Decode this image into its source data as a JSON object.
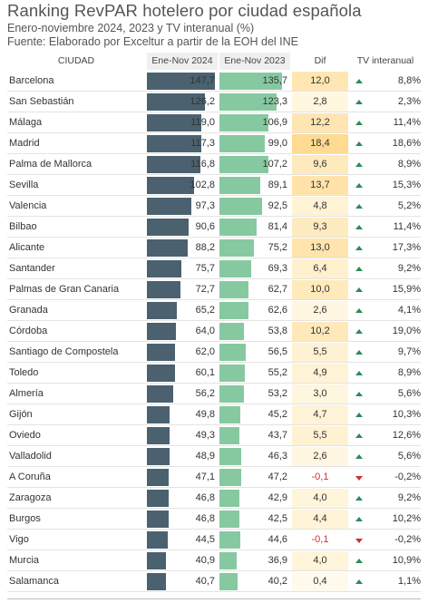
{
  "title": "Ranking RevPAR hotelero por ciudad española",
  "subtitle": "Enero-noviembre 2024, 2023 y TV interanual (%)",
  "source": "Fuente: Elaborado por Exceltur a partir de la EOH del INE",
  "headers": {
    "city": "CIUDAD",
    "v2024": "Ene-Nov 2024",
    "v2023": "Ene-Nov 2023",
    "dif": "Dif",
    "tv": "TV interanual"
  },
  "colors": {
    "bar2024": "#4b6170",
    "bar2023": "#86c9a1",
    "up": "#2e8b57",
    "down": "#d32f2f"
  },
  "chart_data": {
    "type": "table",
    "max_value": 147.7,
    "rows": [
      {
        "city": "Barcelona",
        "v2024": 147.7,
        "v2023": 135.7,
        "v2024_text": "147,7",
        "v2023_text": "135,7",
        "dif": 12.0,
        "dif_text": "12,0",
        "tv": 8.8,
        "tv_text": "8,8%"
      },
      {
        "city": "San Sebastián",
        "v2024": 126.2,
        "v2023": 123.3,
        "v2024_text": "126,2",
        "v2023_text": "123,3",
        "dif": 2.8,
        "dif_text": "2,8",
        "tv": 2.3,
        "tv_text": "2,3%"
      },
      {
        "city": "Málaga",
        "v2024": 119.0,
        "v2023": 106.9,
        "v2024_text": "119,0",
        "v2023_text": "106,9",
        "dif": 12.2,
        "dif_text": "12,2",
        "tv": 11.4,
        "tv_text": "11,4%"
      },
      {
        "city": "Madrid",
        "v2024": 117.3,
        "v2023": 99.0,
        "v2024_text": "117,3",
        "v2023_text": "99,0",
        "dif": 18.4,
        "dif_text": "18,4",
        "tv": 18.6,
        "tv_text": "18,6%"
      },
      {
        "city": "Palma de Mallorca",
        "v2024": 116.8,
        "v2023": 107.2,
        "v2024_text": "116,8",
        "v2023_text": "107,2",
        "dif": 9.6,
        "dif_text": "9,6",
        "tv": 8.9,
        "tv_text": "8,9%"
      },
      {
        "city": "Sevilla",
        "v2024": 102.8,
        "v2023": 89.1,
        "v2024_text": "102,8",
        "v2023_text": "89,1",
        "dif": 13.7,
        "dif_text": "13,7",
        "tv": 15.3,
        "tv_text": "15,3%"
      },
      {
        "city": "Valencia",
        "v2024": 97.3,
        "v2023": 92.5,
        "v2024_text": "97,3",
        "v2023_text": "92,5",
        "dif": 4.8,
        "dif_text": "4,8",
        "tv": 5.2,
        "tv_text": "5,2%"
      },
      {
        "city": "Bilbao",
        "v2024": 90.6,
        "v2023": 81.4,
        "v2024_text": "90,6",
        "v2023_text": "81,4",
        "dif": 9.3,
        "dif_text": "9,3",
        "tv": 11.4,
        "tv_text": "11,4%"
      },
      {
        "city": "Alicante",
        "v2024": 88.2,
        "v2023": 75.2,
        "v2024_text": "88,2",
        "v2023_text": "75,2",
        "dif": 13.0,
        "dif_text": "13,0",
        "tv": 17.3,
        "tv_text": "17,3%"
      },
      {
        "city": "Santander",
        "v2024": 75.7,
        "v2023": 69.3,
        "v2024_text": "75,7",
        "v2023_text": "69,3",
        "dif": 6.4,
        "dif_text": "6,4",
        "tv": 9.2,
        "tv_text": "9,2%"
      },
      {
        "city": "Palmas de Gran Canaria",
        "v2024": 72.7,
        "v2023": 62.7,
        "v2024_text": "72,7",
        "v2023_text": "62,7",
        "dif": 10.0,
        "dif_text": "10,0",
        "tv": 15.9,
        "tv_text": "15,9%"
      },
      {
        "city": "Granada",
        "v2024": 65.2,
        "v2023": 62.6,
        "v2024_text": "65,2",
        "v2023_text": "62,6",
        "dif": 2.6,
        "dif_text": "2,6",
        "tv": 4.1,
        "tv_text": "4,1%"
      },
      {
        "city": "Córdoba",
        "v2024": 64.0,
        "v2023": 53.8,
        "v2024_text": "64,0",
        "v2023_text": "53,8",
        "dif": 10.2,
        "dif_text": "10,2",
        "tv": 19.0,
        "tv_text": "19,0%"
      },
      {
        "city": "Santiago de Compostela",
        "v2024": 62.0,
        "v2023": 56.5,
        "v2024_text": "62,0",
        "v2023_text": "56,5",
        "dif": 5.5,
        "dif_text": "5,5",
        "tv": 9.7,
        "tv_text": "9,7%"
      },
      {
        "city": "Toledo",
        "v2024": 60.1,
        "v2023": 55.2,
        "v2024_text": "60,1",
        "v2023_text": "55,2",
        "dif": 4.9,
        "dif_text": "4,9",
        "tv": 8.9,
        "tv_text": "8,9%"
      },
      {
        "city": "Almería",
        "v2024": 56.2,
        "v2023": 53.2,
        "v2024_text": "56,2",
        "v2023_text": "53,2",
        "dif": 3.0,
        "dif_text": "3,0",
        "tv": 5.6,
        "tv_text": "5,6%"
      },
      {
        "city": "Gijón",
        "v2024": 49.8,
        "v2023": 45.2,
        "v2024_text": "49,8",
        "v2023_text": "45,2",
        "dif": 4.7,
        "dif_text": "4,7",
        "tv": 10.3,
        "tv_text": "10,3%"
      },
      {
        "city": "Oviedo",
        "v2024": 49.3,
        "v2023": 43.7,
        "v2024_text": "49,3",
        "v2023_text": "43,7",
        "dif": 5.5,
        "dif_text": "5,5",
        "tv": 12.6,
        "tv_text": "12,6%"
      },
      {
        "city": "Valladolid",
        "v2024": 48.9,
        "v2023": 46.3,
        "v2024_text": "48,9",
        "v2023_text": "46,3",
        "dif": 2.6,
        "dif_text": "2,6",
        "tv": 5.6,
        "tv_text": "5,6%"
      },
      {
        "city": "A Coruña",
        "v2024": 47.1,
        "v2023": 47.2,
        "v2024_text": "47,1",
        "v2023_text": "47,2",
        "dif": -0.1,
        "dif_text": "-0,1",
        "tv": -0.2,
        "tv_text": "-0,2%"
      },
      {
        "city": "Zaragoza",
        "v2024": 46.8,
        "v2023": 42.9,
        "v2024_text": "46,8",
        "v2023_text": "42,9",
        "dif": 4.0,
        "dif_text": "4,0",
        "tv": 9.2,
        "tv_text": "9,2%"
      },
      {
        "city": "Burgos",
        "v2024": 46.8,
        "v2023": 42.5,
        "v2024_text": "46,8",
        "v2023_text": "42,5",
        "dif": 4.4,
        "dif_text": "4,4",
        "tv": 10.2,
        "tv_text": "10,2%"
      },
      {
        "city": "Vigo",
        "v2024": 44.5,
        "v2023": 44.6,
        "v2024_text": "44,5",
        "v2023_text": "44,6",
        "dif": -0.1,
        "dif_text": "-0,1",
        "tv": -0.2,
        "tv_text": "-0,2%"
      },
      {
        "city": "Murcia",
        "v2024": 40.9,
        "v2023": 36.9,
        "v2024_text": "40,9",
        "v2023_text": "36,9",
        "dif": 4.0,
        "dif_text": "4,0",
        "tv": 10.9,
        "tv_text": "10,9%"
      },
      {
        "city": "Salamanca",
        "v2024": 40.7,
        "v2023": 40.2,
        "v2024_text": "40,7",
        "v2023_text": "40,2",
        "dif": 0.4,
        "dif_text": "0,4",
        "tv": 1.1,
        "tv_text": "1,1%"
      }
    ]
  }
}
